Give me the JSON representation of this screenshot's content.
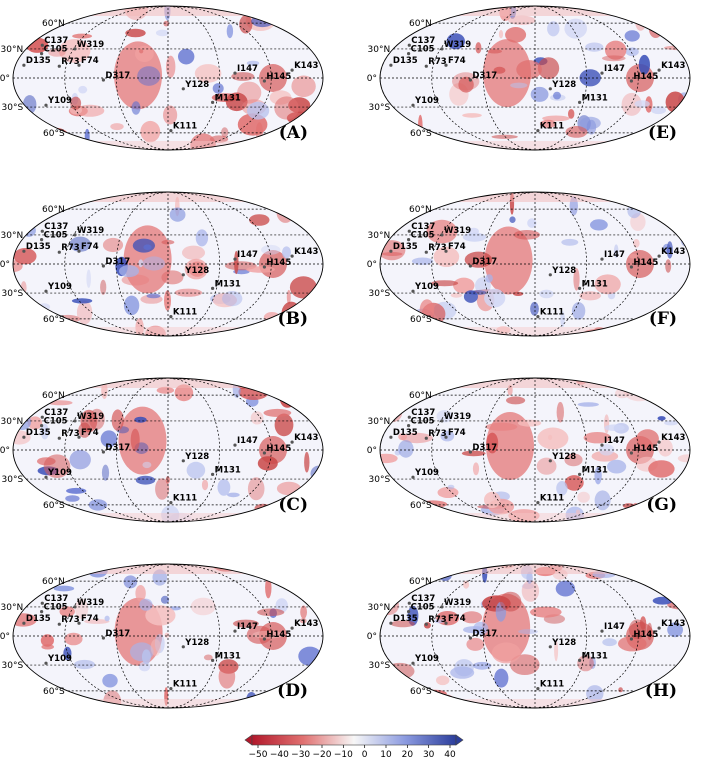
{
  "figure": {
    "lat_labels": [
      "60°N",
      "30°N",
      "0°",
      "30°S",
      "60°S"
    ],
    "colorbar": {
      "ticks": [
        "−50",
        "−40",
        "−30",
        "−20",
        "−10",
        "0",
        "10",
        "20",
        "30",
        "40"
      ],
      "colors": {
        "low": "#b2182b",
        "mid": "#f7f7f7",
        "high": "#2c3e9c"
      }
    },
    "panels": [
      {
        "letter": "(A)"
      },
      {
        "letter": "(E)"
      },
      {
        "letter": "(B)"
      },
      {
        "letter": "(F)"
      },
      {
        "letter": "(C)"
      },
      {
        "letter": "(G)"
      },
      {
        "letter": "(D)"
      },
      {
        "letter": "(H)"
      }
    ],
    "sites": [
      {
        "name": "C137",
        "lon": -164,
        "lat": 34
      },
      {
        "name": "C105",
        "lon": -156,
        "lat": 25
      },
      {
        "name": "D135",
        "lon": -170,
        "lat": 13
      },
      {
        "name": "W319",
        "lon": -118,
        "lat": 30
      },
      {
        "name": "R73",
        "lon": -128,
        "lat": 12
      },
      {
        "name": "F74",
        "lon": -105,
        "lat": 13
      },
      {
        "name": "D317",
        "lon": -75,
        "lat": -2
      },
      {
        "name": "Y109",
        "lon": -153,
        "lat": -28
      },
      {
        "name": "Y128",
        "lon": 18,
        "lat": -11
      },
      {
        "name": "K111",
        "lon": 5,
        "lat": -57
      },
      {
        "name": "M131",
        "lon": 55,
        "lat": -25
      },
      {
        "name": "I147",
        "lon": 78,
        "lat": 5
      },
      {
        "name": "H145",
        "lon": 112,
        "lat": -3
      },
      {
        "name": "K143",
        "lon": 145,
        "lat": 8
      }
    ]
  }
}
